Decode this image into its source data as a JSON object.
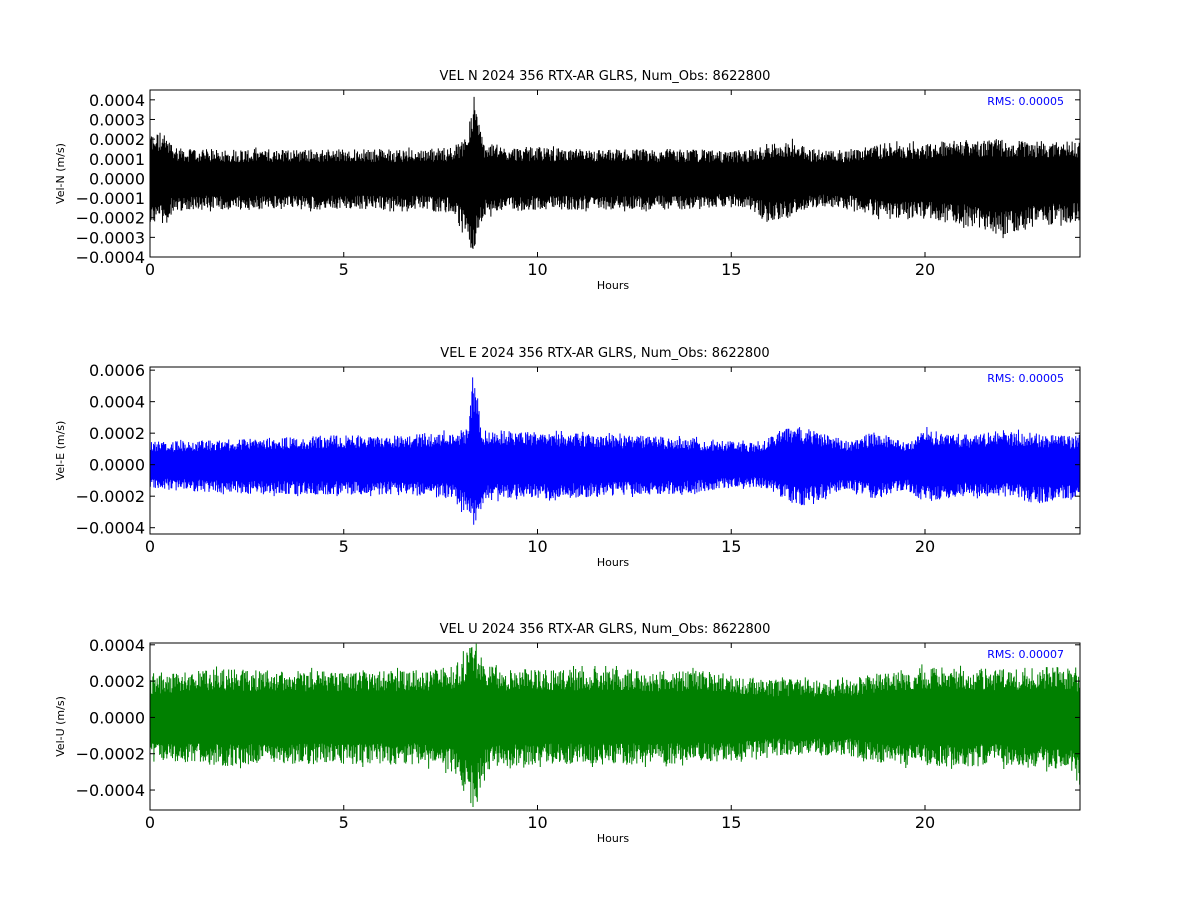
{
  "chart_data": [
    {
      "type": "line",
      "title": "VEL N 2024 356 RTX-AR  GLRS, Num_Obs: 8622800",
      "xlabel": "Hours",
      "ylabel": "Vel-N (m/s)",
      "rms_label": "RMS:  0.00005",
      "rms_color": "#0000ff",
      "color": "#000000",
      "xlim": [
        0,
        24
      ],
      "ylim": [
        -0.0004,
        0.00045
      ],
      "x_ticks": [
        0,
        5,
        10,
        15,
        20
      ],
      "y_ticks": [
        -0.0004,
        -0.0003,
        -0.0002,
        -0.0001,
        0.0,
        0.0001,
        0.0002,
        0.0003,
        0.0004
      ],
      "y_tick_labels": [
        "−0.0004",
        "−0.0003",
        "−0.0002",
        "−0.0001",
        "0.0000",
        "0.0001",
        "0.0002",
        "0.0003",
        "0.0004"
      ],
      "envelope": {
        "x": [
          0,
          0.3,
          0.6,
          1,
          2,
          3,
          4,
          5,
          6,
          7,
          7.8,
          8.2,
          8.35,
          8.6,
          9,
          10,
          11,
          12,
          13,
          14,
          15,
          15.5,
          16,
          16.5,
          17,
          18,
          19,
          20,
          21,
          22,
          23,
          24
        ],
        "upper": [
          0.00023,
          0.00024,
          0.00017,
          0.00015,
          0.00015,
          0.00015,
          0.00015,
          0.00015,
          0.00015,
          0.00015,
          0.00016,
          0.00022,
          0.00044,
          0.00019,
          0.00016,
          0.00016,
          0.00015,
          0.00015,
          0.00015,
          0.00015,
          0.00014,
          0.00015,
          0.00017,
          0.0002,
          0.00015,
          0.00015,
          0.00018,
          0.00018,
          0.0002,
          0.0002,
          0.00019,
          0.00019
        ],
        "lower": [
          -0.00022,
          -0.00025,
          -0.00017,
          -0.00016,
          -0.00016,
          -0.00016,
          -0.00016,
          -0.00016,
          -0.00016,
          -0.00016,
          -0.00018,
          -0.00033,
          -0.00039,
          -0.0002,
          -0.00017,
          -0.00016,
          -0.00016,
          -0.00016,
          -0.00016,
          -0.00016,
          -0.00014,
          -0.00016,
          -0.00022,
          -0.0002,
          -0.00015,
          -0.00015,
          -0.00021,
          -0.00021,
          -0.00024,
          -0.00029,
          -0.00024,
          -0.00022
        ]
      }
    },
    {
      "type": "line",
      "title": "VEL E 2024 356 RTX-AR  GLRS, Num_Obs: 8622800",
      "xlabel": "Hours",
      "ylabel": "Vel-E (m/s)",
      "rms_label": "RMS:  0.00005",
      "rms_color": "#0000ff",
      "color": "#0000ff",
      "xlim": [
        0,
        24
      ],
      "ylim": [
        -0.00044,
        0.00062
      ],
      "x_ticks": [
        0,
        5,
        10,
        15,
        20
      ],
      "y_ticks": [
        -0.0004,
        -0.0002,
        0.0,
        0.0002,
        0.0004,
        0.0006
      ],
      "y_tick_labels": [
        "−0.0004",
        "−0.0002",
        "0.0000",
        "0.0002",
        "0.0004",
        "0.0006"
      ],
      "envelope": {
        "x": [
          0,
          1,
          2,
          3,
          4,
          5,
          6,
          7,
          7.8,
          8.2,
          8.35,
          8.6,
          9,
          10,
          11,
          12,
          13,
          14,
          15,
          15.8,
          16.2,
          16.8,
          17.2,
          18,
          18.7,
          19.5,
          20,
          21,
          22,
          23,
          24
        ],
        "upper": [
          0.00015,
          0.00015,
          0.00016,
          0.00017,
          0.00018,
          0.00019,
          0.00019,
          0.0002,
          0.00021,
          0.00023,
          0.00062,
          0.00022,
          0.00022,
          0.00021,
          0.0002,
          0.00019,
          0.00018,
          0.00017,
          0.00015,
          0.00014,
          0.00022,
          0.00024,
          0.00022,
          0.00015,
          0.00021,
          0.00015,
          0.00023,
          0.00018,
          0.00022,
          0.0002,
          0.00018
        ],
        "lower": [
          -0.00015,
          -0.00017,
          -0.00018,
          -0.00019,
          -0.00019,
          -0.00019,
          -0.00019,
          -0.0002,
          -0.00022,
          -0.00033,
          -0.00043,
          -0.00024,
          -0.00022,
          -0.00022,
          -0.00021,
          -0.0002,
          -0.00019,
          -0.00018,
          -0.00015,
          -0.00014,
          -0.0002,
          -0.00027,
          -0.00023,
          -0.00016,
          -0.00022,
          -0.00016,
          -0.00025,
          -0.0002,
          -0.00021,
          -0.00025,
          -0.0002
        ]
      }
    },
    {
      "type": "line",
      "title": "VEL U 2024 356 RTX-AR  GLRS, Num_Obs: 8622800",
      "xlabel": "Hours",
      "ylabel": "Vel-U (m/s)",
      "rms_label": "RMS:  0.00007",
      "rms_color": "#0000ff",
      "color": "#008000",
      "xlim": [
        0,
        24
      ],
      "ylim": [
        -0.00051,
        0.00041
      ],
      "x_ticks": [
        0,
        5,
        10,
        15,
        20
      ],
      "y_ticks": [
        -0.0004,
        -0.0002,
        0.0,
        0.0002,
        0.0004
      ],
      "y_tick_labels": [
        "−0.0004",
        "−0.0002",
        "0.0000",
        "0.0002",
        "0.0004"
      ],
      "envelope": {
        "x": [
          0,
          0.5,
          1,
          2,
          3,
          4,
          5,
          6,
          7,
          7.8,
          8.35,
          8.7,
          9,
          10,
          11,
          12,
          13,
          14,
          15,
          16,
          17,
          18,
          19,
          20,
          21,
          22,
          23,
          23.8,
          24
        ],
        "upper": [
          0.00023,
          0.00024,
          0.00026,
          0.00027,
          0.00026,
          0.00026,
          0.00026,
          0.00026,
          0.00026,
          0.00028,
          0.00041,
          0.00029,
          0.00027,
          0.00027,
          0.00027,
          0.00027,
          0.00026,
          0.00026,
          0.00024,
          0.00021,
          0.00021,
          0.00021,
          0.00026,
          0.00028,
          0.00027,
          0.00027,
          0.00028,
          0.00028,
          0.00024
        ],
        "lower": [
          -0.00023,
          -0.00024,
          -0.00026,
          -0.00027,
          -0.00026,
          -0.00026,
          -0.00026,
          -0.00026,
          -0.00026,
          -0.0003,
          -0.0005,
          -0.00029,
          -0.00027,
          -0.00026,
          -0.00026,
          -0.00026,
          -0.00026,
          -0.00025,
          -0.00024,
          -0.00021,
          -0.00021,
          -0.00021,
          -0.00026,
          -0.00027,
          -0.00027,
          -0.00027,
          -0.00028,
          -0.0003,
          -0.00039
        ]
      }
    }
  ]
}
